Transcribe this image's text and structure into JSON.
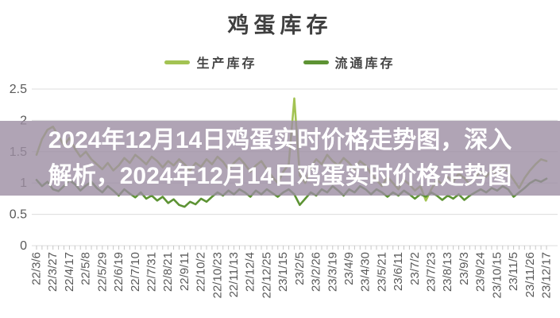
{
  "title": "鸡蛋库存",
  "legend": {
    "items": [
      {
        "label": "生产库存",
        "color": "#a3c353"
      },
      {
        "label": "流通库存",
        "color": "#5d9334"
      }
    ]
  },
  "overlay": {
    "lines": [
      "2024年12月14日鸡蛋实时价格走势图，深入",
      "解析，2024年12月14日鸡蛋实时价格走势图"
    ],
    "text_color": "#ffffff",
    "bg_color": "rgba(156,141,162,0.80)"
  },
  "colors": {
    "grid": "#dcdcdc",
    "tick": "#c6c6c6",
    "axis_text": "#595959",
    "title_text": "#3f3f3f"
  },
  "chart_data": {
    "type": "line",
    "title": "鸡蛋库存",
    "grid": true,
    "legend_position": "top",
    "ylim": [
      0,
      2.5
    ],
    "y_ticks": [
      0,
      0.5,
      1,
      1.5,
      2,
      2.5
    ],
    "label_every": 3,
    "categories": [
      "22/3/6",
      "22/3/27",
      "22/4/17",
      "22/5/8",
      "22/5/29",
      "22/6/19",
      "22/7/10",
      "22/7/31",
      "22/8/21",
      "22/9/11",
      "22/10/2",
      "22/10/23",
      "22/11/13",
      "22/12/4",
      "22/12/25",
      "23/1/15",
      "23/2/5",
      "23/2/26",
      "23/3/19",
      "23/4/9",
      "23/4/30",
      "23/5/21",
      "23/6/11",
      "23/7/2",
      "23/7/23",
      "23/8/13",
      "23/9/3",
      "23/9/24",
      "23/10/15",
      "23/11/5",
      "23/11/26",
      "23/12/17"
    ],
    "series": [
      {
        "name": "生产库存",
        "color": "#a3c353",
        "values": [
          1.45,
          1.7,
          1.85,
          1.9,
          1.75,
          1.6,
          1.72,
          1.55,
          1.42,
          1.5,
          1.38,
          1.3,
          1.22,
          1.32,
          1.2,
          1.28,
          1.4,
          1.32,
          1.45,
          1.38,
          1.3,
          1.42,
          1.35,
          1.25,
          1.35,
          1.28,
          1.38,
          1.3,
          1.2,
          1.32,
          1.26,
          1.38,
          1.3,
          1.42,
          1.34,
          1.22,
          1.32,
          1.4,
          1.3,
          1.18,
          1.28,
          1.35,
          1.22,
          1.1,
          1.0,
          1.18,
          1.3,
          2.35,
          1.12,
          1.0,
          1.25,
          1.38,
          1.3,
          1.45,
          1.35,
          1.28,
          1.4,
          1.32,
          1.22,
          1.35,
          1.28,
          1.15,
          1.05,
          0.95,
          1.1,
          1.0,
          0.9,
          1.05,
          0.98,
          0.88,
          0.95,
          0.72,
          0.9,
          1.05,
          0.98,
          1.1,
          1.02,
          1.15,
          1.08,
          0.98,
          1.1,
          1.18,
          1.1,
          1.2,
          1.12,
          1.25,
          1.18,
          1.05,
          0.92,
          1.08,
          1.2,
          1.3,
          1.38,
          1.35
        ]
      },
      {
        "name": "流通库存",
        "color": "#5d9334",
        "values": [
          1.05,
          0.95,
          1.02,
          0.9,
          0.87,
          0.95,
          1.05,
          0.98,
          0.88,
          0.96,
          1.02,
          0.92,
          0.85,
          0.95,
          0.88,
          0.8,
          0.9,
          0.83,
          0.77,
          0.85,
          0.75,
          0.8,
          0.72,
          0.78,
          0.68,
          0.74,
          0.65,
          0.62,
          0.7,
          0.66,
          0.75,
          0.7,
          0.78,
          0.85,
          0.8,
          0.88,
          0.82,
          0.9,
          0.85,
          0.78,
          0.88,
          0.82,
          0.9,
          0.84,
          0.78,
          0.85,
          0.9,
          0.82,
          0.65,
          0.75,
          0.85,
          0.8,
          0.9,
          0.85,
          0.95,
          0.88,
          0.8,
          0.9,
          0.85,
          0.95,
          0.9,
          0.82,
          0.9,
          0.85,
          0.78,
          0.85,
          0.8,
          0.88,
          0.82,
          0.75,
          0.82,
          0.78,
          0.85,
          0.8,
          0.73,
          0.8,
          0.75,
          0.82,
          0.73,
          0.8,
          0.85,
          0.9,
          0.85,
          0.92,
          0.88,
          0.95,
          0.9,
          0.78,
          0.85,
          0.92,
          1.0,
          1.05,
          1.02,
          1.07
        ]
      }
    ]
  }
}
